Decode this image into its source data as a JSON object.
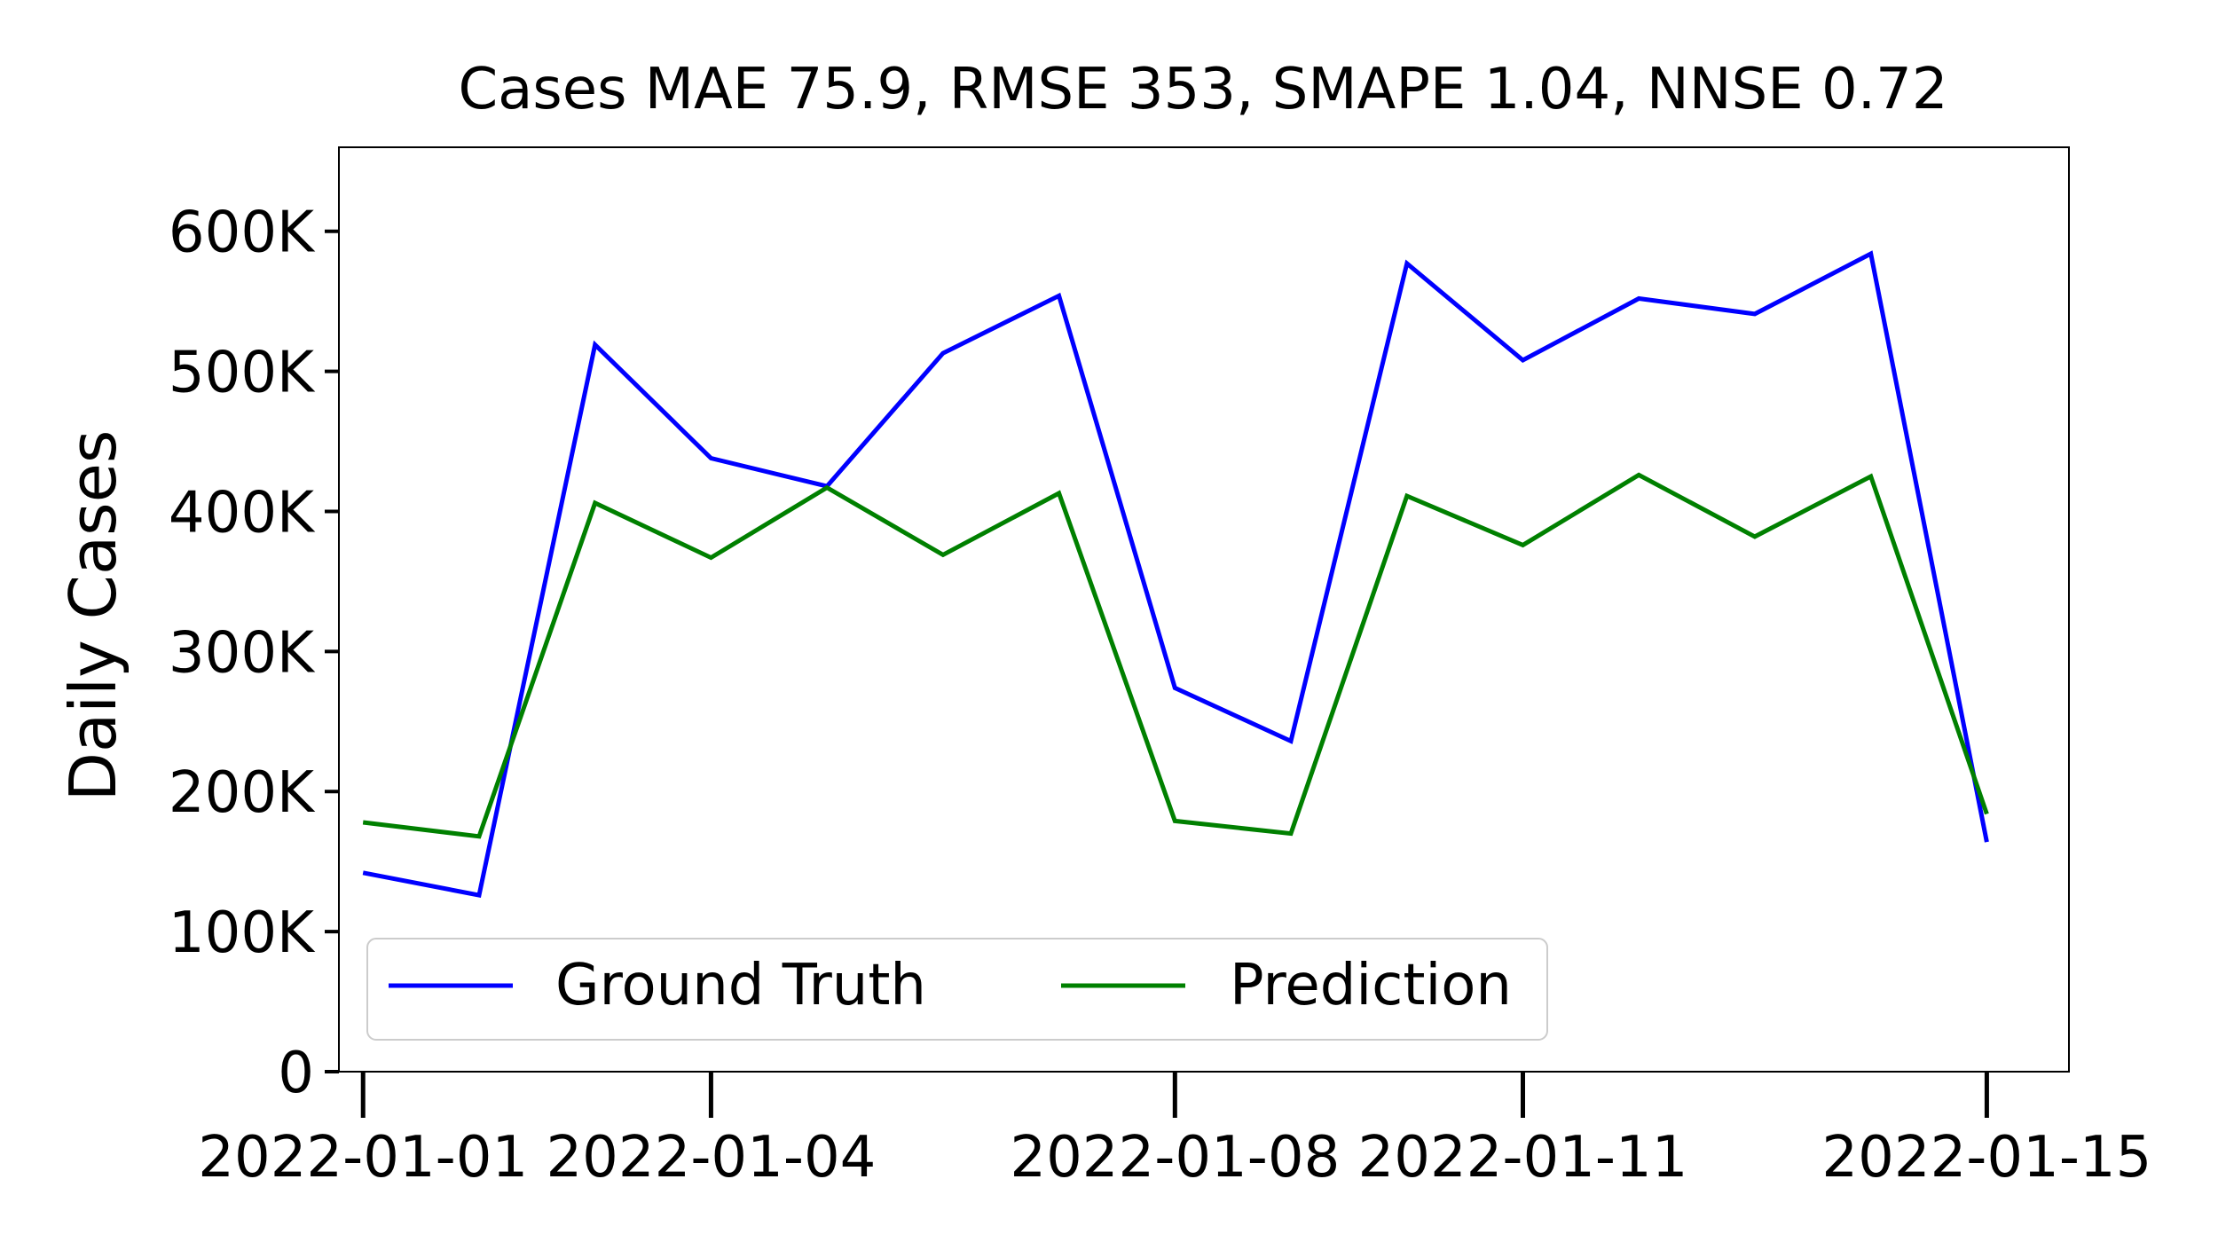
{
  "chart_data": {
    "type": "line",
    "title": "Cases MAE 75.9, RMSE 353, SMAPE 1.04, NNSE 0.72",
    "xlabel": "",
    "ylabel": "Daily Cases",
    "x": [
      "2022-01-01",
      "2022-01-02",
      "2022-01-03",
      "2022-01-04",
      "2022-01-05",
      "2022-01-06",
      "2022-01-07",
      "2022-01-08",
      "2022-01-09",
      "2022-01-10",
      "2022-01-11",
      "2022-01-12",
      "2022-01-13",
      "2022-01-14",
      "2022-01-15"
    ],
    "xticks": [
      "2022-01-01",
      "2022-01-04",
      "2022-01-08",
      "2022-01-11",
      "2022-01-15"
    ],
    "xlim": [
      "2021-12-31T19:00:00",
      "2022-01-15T17:00:00"
    ],
    "ylim": [
      0,
      660000
    ],
    "yticks": [
      0,
      100000,
      200000,
      300000,
      400000,
      500000,
      600000
    ],
    "ytick_labels": [
      "0",
      "100K",
      "200K",
      "300K",
      "400K",
      "500K",
      "600K"
    ],
    "grid": false,
    "legend_position": "lower-left",
    "series": [
      {
        "name": "Ground Truth",
        "color": "#0000ff",
        "values": [
          142000,
          126000,
          519000,
          438000,
          418000,
          513000,
          554000,
          274000,
          236000,
          577000,
          508000,
          552000,
          541000,
          584000,
          164000
        ]
      },
      {
        "name": "Prediction",
        "color": "#008000",
        "values": [
          178000,
          168000,
          406000,
          367000,
          417000,
          369000,
          413000,
          179000,
          170000,
          411000,
          376000,
          426000,
          382000,
          425000,
          184000
        ]
      }
    ]
  }
}
